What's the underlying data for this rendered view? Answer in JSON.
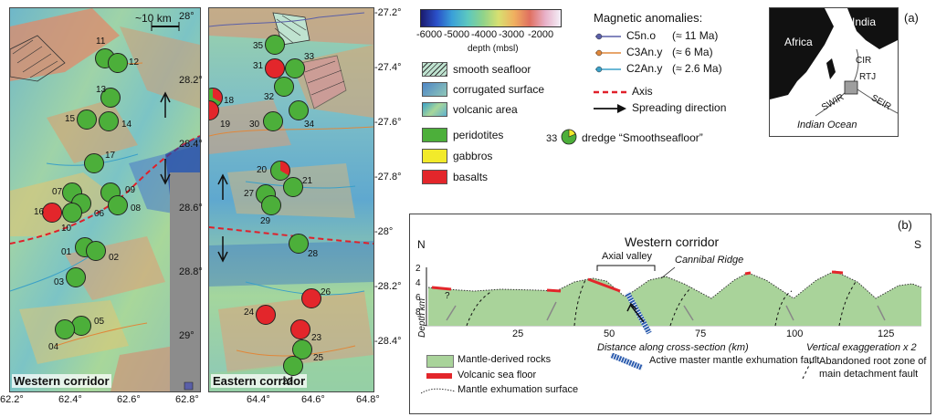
{
  "panel_a": {
    "scale_bar": "~10 km",
    "western": {
      "title": "Western corridor",
      "x_ticks": [
        "62.2°",
        "62.4°",
        "62.6°",
        "62.8°"
      ],
      "y_ticks": [
        "28°",
        "28.2°",
        "28.4°",
        "28.6°",
        "28.8°",
        "29°"
      ],
      "sites": [
        {
          "id": "11",
          "kind": "green"
        },
        {
          "id": "12",
          "kind": "green"
        },
        {
          "id": "13",
          "kind": "green"
        },
        {
          "id": "15",
          "kind": "green"
        },
        {
          "id": "14",
          "kind": "green"
        },
        {
          "id": "17",
          "kind": "green"
        },
        {
          "id": "07",
          "kind": "green"
        },
        {
          "id": "09",
          "kind": "green"
        },
        {
          "id": "16",
          "kind": "red"
        },
        {
          "id": "06",
          "kind": "green"
        },
        {
          "id": "08",
          "kind": "green"
        },
        {
          "id": "10",
          "kind": "green"
        },
        {
          "id": "01",
          "kind": "green"
        },
        {
          "id": "02",
          "kind": "green"
        },
        {
          "id": "03",
          "kind": "green"
        },
        {
          "id": "05",
          "kind": "green"
        },
        {
          "id": "04",
          "kind": "green"
        }
      ]
    },
    "eastern": {
      "title": "Eastern corridor",
      "x_ticks": [
        "64.4°",
        "64.6°",
        "64.8°"
      ],
      "y_ticks": [
        "-27.2°",
        "-27.4°",
        "-27.6°",
        "-27.8°",
        "-28°",
        "-28.2°",
        "-28.4°"
      ],
      "sites": [
        {
          "id": "35",
          "kind": "green"
        },
        {
          "id": "31",
          "kind": "red"
        },
        {
          "id": "33",
          "kind": "green"
        },
        {
          "id": "32",
          "kind": "green"
        },
        {
          "id": "18",
          "kind": "mixed"
        },
        {
          "id": "19",
          "kind": "red"
        },
        {
          "id": "30",
          "kind": "green"
        },
        {
          "id": "34",
          "kind": "green"
        },
        {
          "id": "20",
          "kind": "mixed"
        },
        {
          "id": "21",
          "kind": "green"
        },
        {
          "id": "27",
          "kind": "green"
        },
        {
          "id": "29",
          "kind": "green"
        },
        {
          "id": "28",
          "kind": "green"
        },
        {
          "id": "26",
          "kind": "red"
        },
        {
          "id": "24",
          "kind": "red"
        },
        {
          "id": "23",
          "kind": "red"
        },
        {
          "id": "25",
          "kind": "green"
        },
        {
          "id": "22",
          "kind": "green"
        }
      ]
    }
  },
  "legend": {
    "depth_ticks": [
      "-6000",
      "-5000",
      "-4000",
      "-3000",
      "-2000"
    ],
    "depth_label": "depth (mbsl)",
    "terrain": [
      "smooth seafloor",
      "corrugated surface",
      "volcanic area"
    ],
    "rocks": [
      "peridotites",
      "gabbros",
      "basalts"
    ],
    "dredge_number": "33",
    "dredge_text": "dredge “Smoothseafloor”",
    "magnetic_title": "Magnetic anomalies:",
    "magnetic": [
      {
        "label": "C5n.o",
        "age": "(≈ 11 Ma)",
        "color": "#5a5fa8"
      },
      {
        "label": "C3An.y",
        "age": "(≈ 6 Ma)",
        "color": "#e0873a"
      },
      {
        "label": "C2An.y",
        "age": "(≈ 2.6 Ma)",
        "color": "#3aa0c8"
      }
    ],
    "axis": "Axis",
    "spreading": "Spreading direction"
  },
  "inset": {
    "panel_label": "(a)",
    "labels": [
      "India",
      "Africa",
      "CIR",
      "RTJ",
      "SWIR",
      "SEIR",
      "Indian Ocean"
    ]
  },
  "panel_b": {
    "label": "(b)",
    "title": "Western corridor",
    "north": "N",
    "south": "S",
    "axial_valley": "Axial valley",
    "cannibal_ridge": "Cannibal Ridge",
    "question": "?",
    "depth_ticks": [
      "2",
      "4",
      "6",
      "8"
    ],
    "depth_label": "Depth km",
    "x_ticks": [
      "25",
      "50",
      "75",
      "100",
      "125"
    ],
    "x_label": "Distance along cross-section (km)",
    "vertical_exaggeration": "Vertical exaggeration x 2",
    "legend": {
      "mantle": "Mantle-derived rocks",
      "volcanic": "Volcanic sea floor",
      "exhumation_surface": "Mantle exhumation surface",
      "active_fault": "Active master mantle exhumation fault",
      "abandoned": "Abandoned root zone of main detachment fault"
    }
  },
  "colors": {
    "peridotite": "#4caf3a",
    "gabbro": "#f2ea2a",
    "basalt": "#e3262b",
    "axis": "#e0202a",
    "mantle": "#a9d39a",
    "fault": "#2c5cae"
  }
}
